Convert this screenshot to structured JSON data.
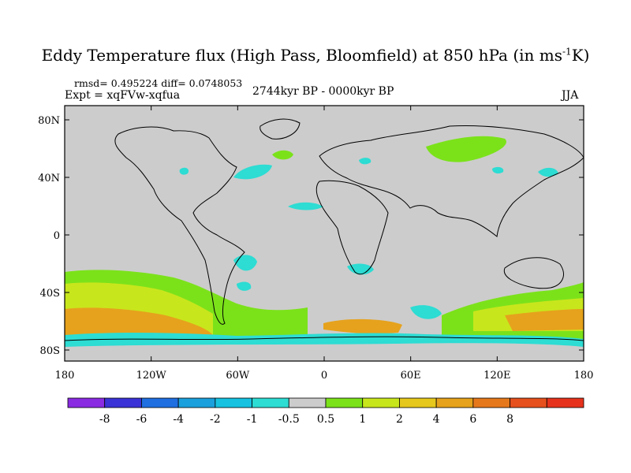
{
  "title": {
    "main": "Eddy Temperature flux (High Pass, Bloomfield) at 850 hPa (in ms",
    "sup": "-1",
    "end": "K)"
  },
  "stats": "rmsd= 0.495224 diff= 0.0748053",
  "expt": "Expt = xqFVw-xqfua",
  "period": "2744kyr BP - 0000kyr BP",
  "season": "JJA",
  "y_ticks": [
    "80N",
    "40N",
    "0",
    "40S",
    "80S"
  ],
  "x_ticks": [
    "180",
    "120W",
    "60W",
    "0",
    "60E",
    "120E",
    "180"
  ],
  "colorbar": {
    "colors": [
      "#8a2be2",
      "#3a32d6",
      "#1f6fe0",
      "#1aa0dc",
      "#16c2e0",
      "#2ddcd3",
      "#cccccc",
      "#7be21a",
      "#c8e61c",
      "#e6c81c",
      "#e6a21c",
      "#e6781c",
      "#e6501c",
      "#e6321c"
    ],
    "labels": [
      "-8",
      "-6",
      "-4",
      "-2",
      "-1",
      "-0.5",
      "0.5",
      "1",
      "2",
      "4",
      "6",
      "8"
    ]
  },
  "colors": {
    "land_bg": "#cccccc",
    "green": "#7be21a",
    "cyan": "#2ddcd3",
    "yellow": "#c8e61c",
    "orange": "#e6a21c"
  }
}
